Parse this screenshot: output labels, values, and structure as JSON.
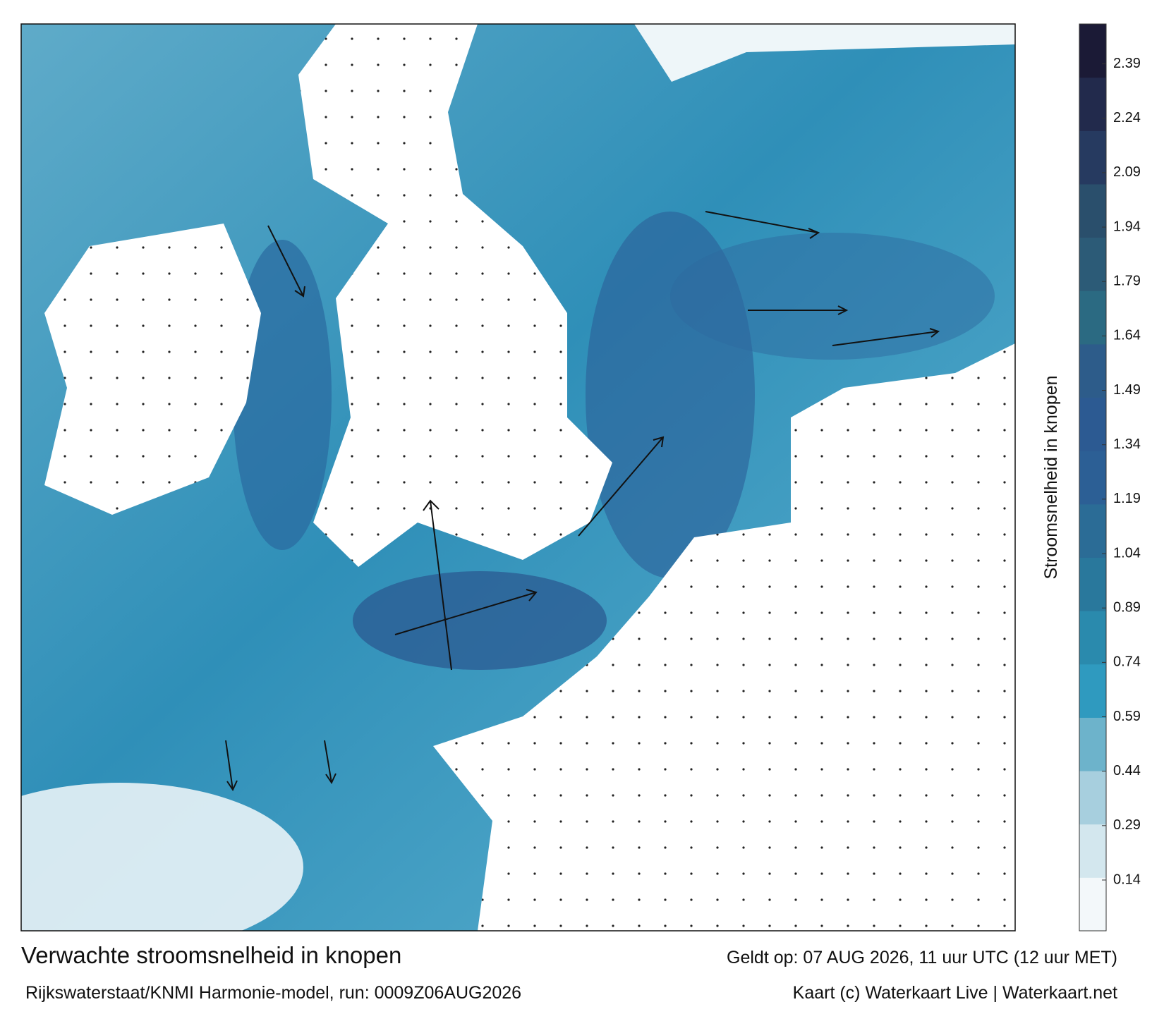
{
  "title": "Verwachte stroomsnelheid in knopen",
  "valid": "Geldt op: 07 AUG 2026, 11 uur UTC (12 uur MET)",
  "source": "Rijkswaterstaat/KNMI Harmonie-model, run: 0009Z06AUG2026",
  "credit": "Kaart (c) Waterkaart Live | Waterkaart.net",
  "colorbar": {
    "label": "Stroomsnelheid in knopen",
    "lim": [
      0,
      2.5
    ],
    "ticks": [
      0.14,
      0.29,
      0.44,
      0.59,
      0.74,
      0.89,
      1.04,
      1.19,
      1.34,
      1.49,
      1.64,
      1.79,
      1.94,
      2.09,
      2.24,
      2.39
    ],
    "colors": [
      "#f3f8fa",
      "#d3e7ee",
      "#a7cfde",
      "#6db3cb",
      "#2f9abf",
      "#2a8aad",
      "#29789c",
      "#2b6c96",
      "#2c5f95",
      "#2c5a92",
      "#2d5c8a",
      "#2b6a82",
      "#2c5b77",
      "#2a4f6c",
      "#263a60",
      "#222a4c",
      "#1b1a36"
    ]
  }
}
